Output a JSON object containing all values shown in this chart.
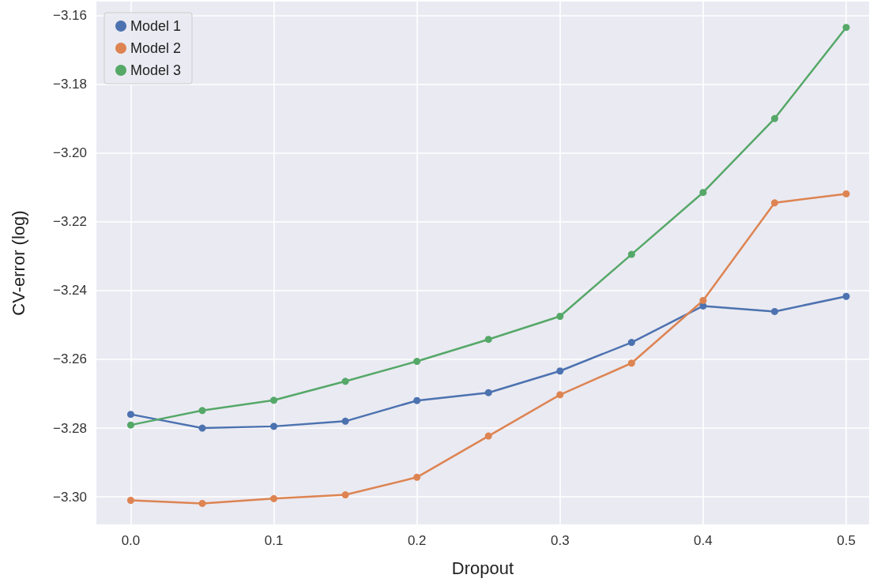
{
  "chart_data": {
    "type": "line",
    "xlabel": "Dropout",
    "ylabel": "CV-error (log)",
    "x": [
      0.0,
      0.05,
      0.1,
      0.15,
      0.2,
      0.25,
      0.3,
      0.35,
      0.4,
      0.45,
      0.5
    ],
    "series": [
      {
        "name": "Model 1",
        "color": "#4c72b0",
        "values": [
          -3.276,
          -3.28,
          -3.2795,
          -3.278,
          -3.272,
          -3.2697,
          -3.2634,
          -3.2551,
          -3.2445,
          -3.2461,
          -3.2417
        ]
      },
      {
        "name": "Model 2",
        "color": "#dd8452",
        "values": [
          -3.301,
          -3.3019,
          -3.3005,
          -3.2994,
          -3.2943,
          -3.2823,
          -3.2703,
          -3.2611,
          -3.2429,
          -3.2145,
          -3.2119
        ]
      },
      {
        "name": "Model 3",
        "color": "#55a868",
        "values": [
          -3.2791,
          -3.2749,
          -3.2719,
          -3.2664,
          -3.2606,
          -3.2542,
          -3.2475,
          -3.2295,
          -3.2115,
          -3.19,
          -3.1635
        ]
      }
    ],
    "xlim": [
      -0.024,
      0.516
    ],
    "ylim": [
      -3.308,
      -3.156
    ],
    "xticks": [
      {
        "value": 0,
        "label": "0.0"
      },
      {
        "value": 0.1,
        "label": "0.1"
      },
      {
        "value": 0.2,
        "label": "0.2"
      },
      {
        "value": 0.3,
        "label": "0.3"
      },
      {
        "value": 0.4,
        "label": "0.4"
      },
      {
        "value": 0.5,
        "label": "0.5"
      }
    ],
    "yticks": [
      {
        "value": -3.3,
        "label": "−3.30"
      },
      {
        "value": -3.28,
        "label": "−3.28"
      },
      {
        "value": -3.26,
        "label": "−3.26"
      },
      {
        "value": -3.24,
        "label": "−3.24"
      },
      {
        "value": -3.22,
        "label": "−3.22"
      },
      {
        "value": -3.2,
        "label": "−3.20"
      },
      {
        "value": -3.18,
        "label": "−3.18"
      },
      {
        "value": -3.16,
        "label": "−3.16"
      }
    ],
    "grid": true,
    "legend": "top left",
    "marker": "circle",
    "line_style": "solid"
  }
}
